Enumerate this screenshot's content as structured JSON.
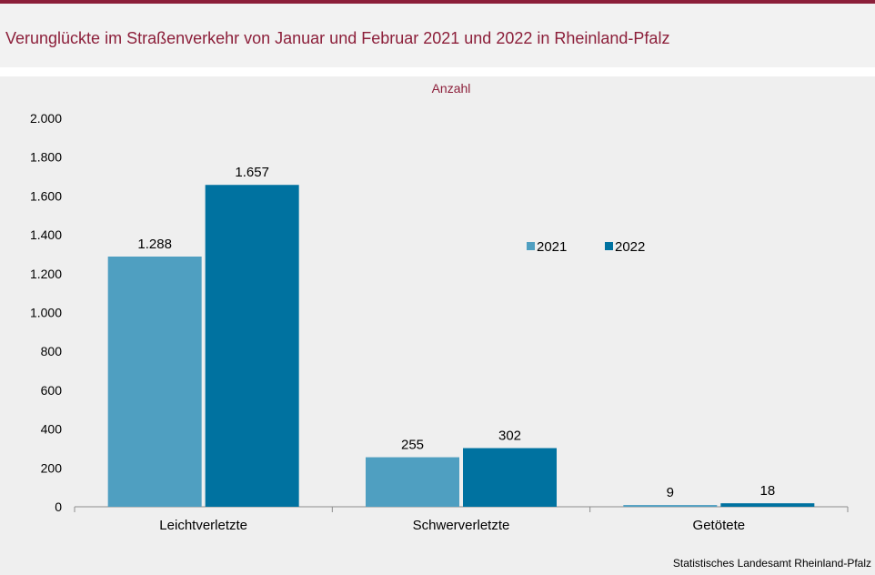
{
  "title": "Verunglückte im Straßenverkehr von Januar und Februar 2021 und 2022 in Rheinland-Pfalz",
  "source": "Statistisches Landesamt  Rheinland-Pfalz",
  "colors": {
    "accent": "#8c1f3a",
    "series_2021": "#4f9fc1",
    "series_2022": "#0072a0"
  },
  "chart_data": {
    "type": "bar",
    "unit_label": "Anzahl",
    "categories": [
      "Leichtverletzte",
      "Schwerverletzte",
      "Getötete"
    ],
    "series": [
      {
        "name": "2021",
        "values": [
          1288,
          255,
          9
        ],
        "labels": [
          "1.288",
          "255",
          "9"
        ]
      },
      {
        "name": "2022",
        "values": [
          1657,
          302,
          18
        ],
        "labels": [
          "1.657",
          "302",
          "18"
        ]
      }
    ],
    "ylim": [
      0,
      2000
    ],
    "yticks": [
      0,
      200,
      400,
      600,
      800,
      1000,
      1200,
      1400,
      1600,
      1800,
      2000
    ],
    "ytick_labels": [
      "0",
      "200",
      "400",
      "600",
      "800",
      "1.000",
      "1.200",
      "1.400",
      "1.600",
      "1.800",
      "2.000"
    ],
    "grid": false,
    "legend_position": "right, inside plot"
  }
}
